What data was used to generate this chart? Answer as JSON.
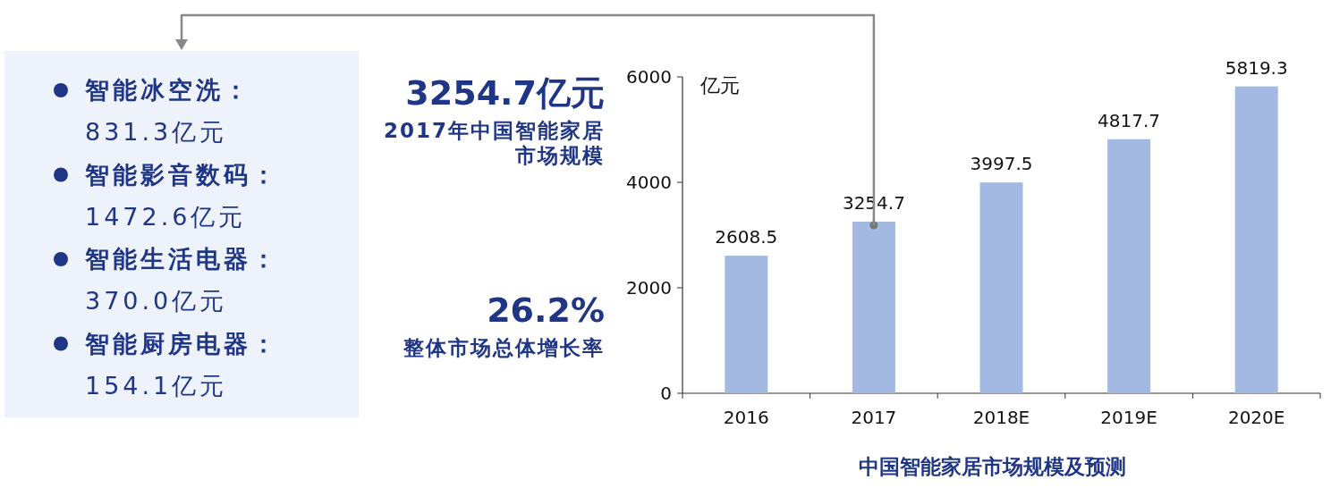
{
  "chart_data": [
    {
      "type": "other",
      "annotations": [
        "智能冰空洗：",
        "831.3亿元",
        "智能影音数码：",
        "1472.6亿元",
        "智能生活电器：",
        "370.0亿元",
        "智能厨房电器：",
        "154.1亿元"
      ]
    },
    {
      "type": "bar",
      "title": "中国智能家居市场规模及预测",
      "ylabel": "亿元",
      "categories": [
        "2016",
        "2017",
        "2018E",
        "2019E",
        "2020E"
      ],
      "values": [
        2608.5,
        3254.7,
        3997.5,
        4817.7,
        5819.3
      ],
      "color": "#a3b9e2",
      "ylim": [
        0,
        6000
      ],
      "yticks": [
        0,
        2000,
        4000,
        6000
      ],
      "data_labels": true,
      "annotations": [
        "3254.7亿元",
        "2017年中国智能家居市场规模",
        "26.2%",
        "整体市场总体增长率"
      ]
    }
  ]
}
